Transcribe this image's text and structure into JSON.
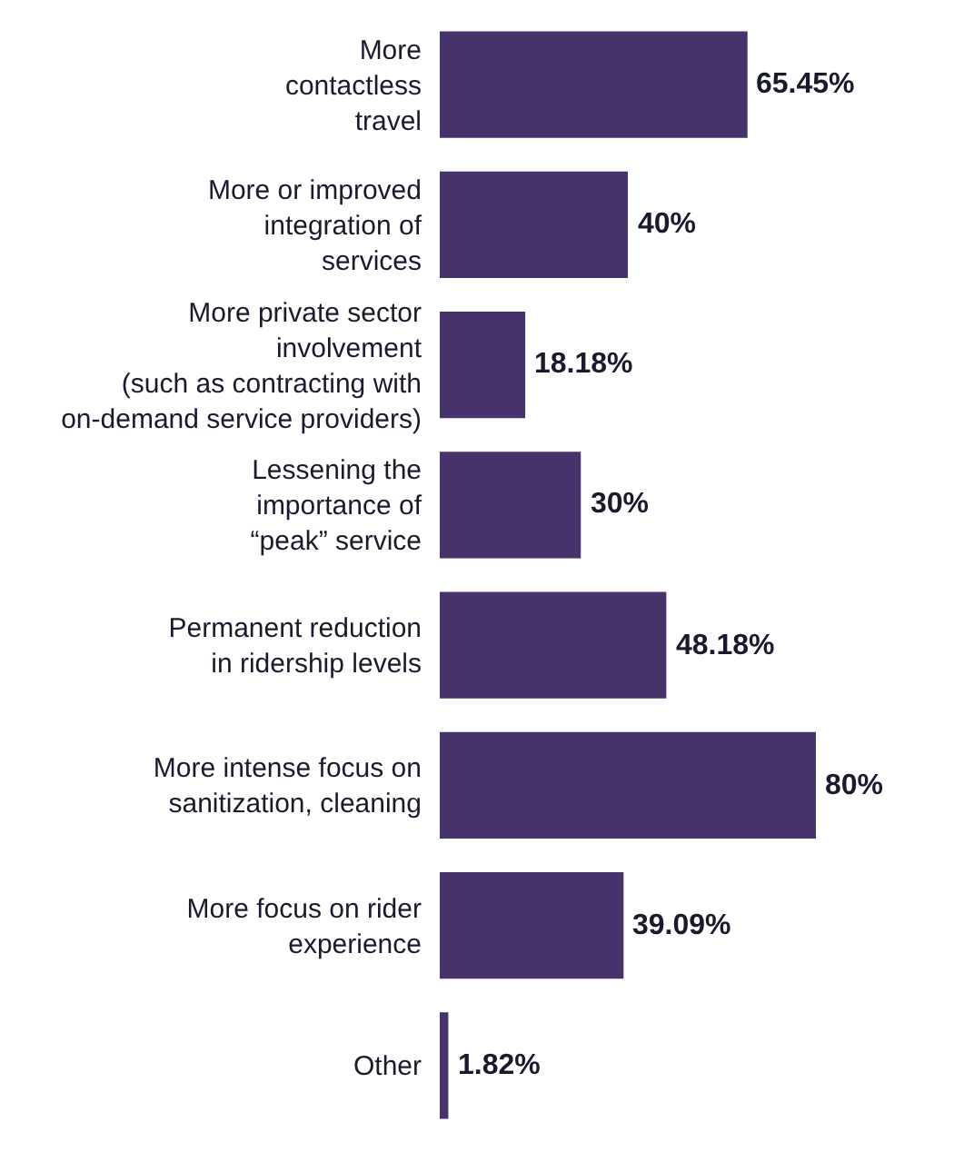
{
  "chart_data": {
    "type": "bar",
    "orientation": "horizontal",
    "categories": [
      "More\ncontactless\ntravel",
      "More or improved\nintegration of\nservices",
      "More private sector\ninvolvement\n(such as contracting with\non-demand service providers)",
      "Lessening the\nimportance of\n“peak” service",
      "Permanent reduction\nin ridership levels",
      "More intense focus on\nsanitization, cleaning",
      "More focus on rider\nexperience",
      "Other"
    ],
    "series": [
      {
        "color": "#46336b",
        "values": [
          65.45,
          40,
          18.18,
          30,
          48.18,
          80,
          39.09,
          1.82
        ],
        "value_labels": [
          "65.45%",
          "40%",
          "18.18%",
          "30%",
          "48.18%",
          "80%",
          "39.09%",
          "1.82%"
        ]
      }
    ],
    "tick_labels": "y"
  }
}
